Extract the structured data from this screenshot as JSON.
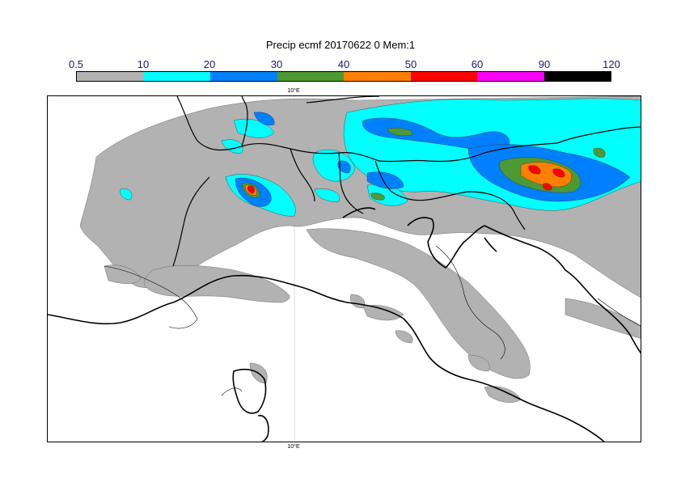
{
  "title": "Precip ecmf 20170622 0 Mem:1",
  "colorbar": {
    "labels": [
      "0.5",
      "10",
      "20",
      "30",
      "40",
      "50",
      "60",
      "90",
      "120"
    ],
    "colors": [
      "#b2b2b2",
      "#00ffff",
      "#0080ff",
      "#4d9933",
      "#ff8000",
      "#ff0000",
      "#ff00ff",
      "#000000"
    ]
  },
  "axis": {
    "top_label": "10°E",
    "bottom_label": "10°E"
  }
}
